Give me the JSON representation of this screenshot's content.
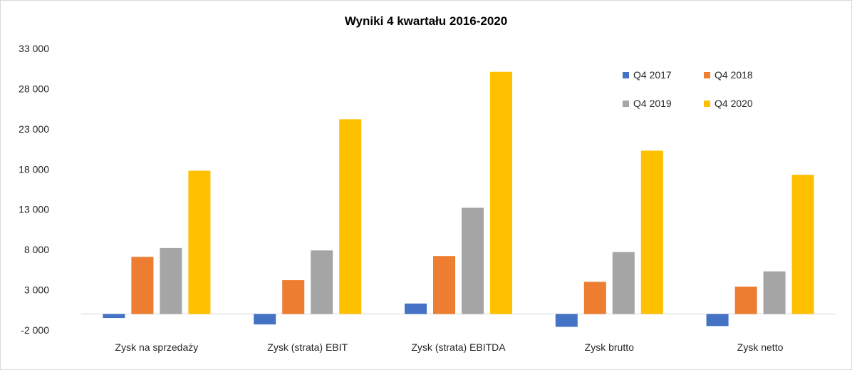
{
  "chart_data": {
    "type": "bar",
    "title": "Wyniki 4 kwartału 2016-2020",
    "xlabel": "",
    "ylabel": "",
    "ylim": [
      -2000,
      33000
    ],
    "yticks": [
      -2000,
      3000,
      8000,
      13000,
      18000,
      23000,
      28000,
      33000
    ],
    "ytick_labels": [
      "-2 000",
      "3 000",
      "8 000",
      "13 000",
      "18 000",
      "23 000",
      "28 000",
      "33 000"
    ],
    "grid": false,
    "legend_position": "top-right",
    "categories": [
      "Zysk na sprzedaży",
      "Zysk (strata) EBIT",
      "Zysk (strata) EBITDA",
      "Zysk brutto",
      "Zysk netto"
    ],
    "series": [
      {
        "name": "Q4 2017",
        "color": "#4472c4",
        "values": [
          -500,
          -1300,
          1300,
          -1600,
          -1500
        ]
      },
      {
        "name": "Q4 2018",
        "color": "#ed7d31",
        "values": [
          7100,
          4200,
          7200,
          4000,
          3400
        ]
      },
      {
        "name": "Q4 2019",
        "color": "#a5a5a5",
        "values": [
          8200,
          7900,
          13200,
          7700,
          5300
        ]
      },
      {
        "name": "Q4 2020",
        "color": "#ffc000",
        "values": [
          17800,
          24200,
          30100,
          20300,
          17300
        ]
      }
    ]
  }
}
